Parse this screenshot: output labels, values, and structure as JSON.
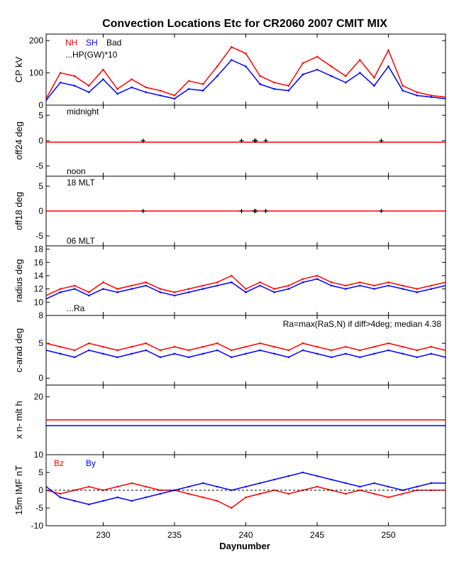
{
  "chart_data": {
    "type": "line",
    "title": "Convection Locations Etc for CR2060 2007 CMIT MIX",
    "xlabel": "Daynumber",
    "xlim": [
      226,
      254
    ],
    "x_ticks": [
      230,
      235,
      240,
      245,
      250
    ],
    "colors": {
      "nh": "#ff0000",
      "sh": "#0000ff",
      "bad": "#000000",
      "zero_line": "#ff0000"
    },
    "panels": [
      {
        "id": "cp",
        "ylabel": "CP kV",
        "ylim": [
          0,
          220
        ],
        "y_ticks": [
          0,
          100,
          200
        ],
        "legend": {
          "nh": "NH",
          "sh": "SH",
          "bad": "Bad"
        },
        "annotations": [
          "...HP(GW)*10"
        ],
        "series": [
          {
            "name": "NH",
            "x": [
              226,
              227,
              228,
              229,
              230,
              231,
              232,
              233,
              234,
              235,
              236,
              237,
              238,
              239,
              240,
              241,
              242,
              243,
              244,
              245,
              246,
              247,
              248,
              249,
              250,
              251,
              252,
              253,
              254
            ],
            "values": [
              20,
              100,
              90,
              60,
              110,
              50,
              80,
              55,
              45,
              30,
              75,
              65,
              120,
              180,
              160,
              90,
              70,
              60,
              130,
              150,
              120,
              90,
              140,
              85,
              170,
              60,
              40,
              30,
              25
            ]
          },
          {
            "name": "SH",
            "x": [
              226,
              227,
              228,
              229,
              230,
              231,
              232,
              233,
              234,
              235,
              236,
              237,
              238,
              239,
              240,
              241,
              242,
              243,
              244,
              245,
              246,
              247,
              248,
              249,
              250,
              251,
              252,
              253,
              254
            ],
            "values": [
              15,
              70,
              60,
              40,
              80,
              35,
              55,
              40,
              30,
              20,
              50,
              45,
              90,
              140,
              120,
              65,
              50,
              45,
              95,
              110,
              90,
              70,
              100,
              60,
              120,
              45,
              30,
              25,
              20
            ]
          }
        ]
      },
      {
        "id": "off24",
        "ylabel": "off24 deg",
        "ylim": [
          -7,
          7
        ],
        "y_ticks": [
          -5,
          0,
          5
        ],
        "annotations": [
          "midnight",
          "noon"
        ],
        "series": [
          {
            "name": "NH",
            "x": [
              226,
              254
            ],
            "values": [
              -0.3,
              -0.3
            ]
          }
        ],
        "markers": [
          {
            "x": 232.8,
            "y": 0
          },
          {
            "x": 239.7,
            "y": 0
          },
          {
            "x": 240.6,
            "y": 0
          },
          {
            "x": 240.7,
            "y": 0
          },
          {
            "x": 241.4,
            "y": 0
          },
          {
            "x": 249.5,
            "y": 0
          }
        ]
      },
      {
        "id": "off18",
        "ylabel": "off18 deg",
        "ylim": [
          -7,
          7
        ],
        "y_ticks": [
          -5,
          0,
          5
        ],
        "annotations": [
          "18 MLT",
          "06 MLT"
        ],
        "series": [
          {
            "name": "NH",
            "x": [
              226,
              254
            ],
            "values": [
              0,
              0
            ]
          }
        ],
        "markers": [
          {
            "x": 232.8,
            "y": 0
          },
          {
            "x": 239.7,
            "y": 0
          },
          {
            "x": 240.6,
            "y": 0
          },
          {
            "x": 240.7,
            "y": 0
          },
          {
            "x": 241.4,
            "y": 0
          },
          {
            "x": 249.5,
            "y": 0
          }
        ]
      },
      {
        "id": "radius",
        "ylabel": "radius deg",
        "ylim": [
          8,
          18.5
        ],
        "y_ticks": [
          8,
          10,
          12,
          14,
          16,
          18
        ],
        "annotations": [
          "...Ra"
        ],
        "series": [
          {
            "name": "NH",
            "x": [
              226,
              227,
              228,
              229,
              230,
              231,
              232,
              233,
              234,
              235,
              236,
              237,
              238,
              239,
              240,
              241,
              242,
              243,
              244,
              245,
              246,
              247,
              248,
              249,
              250,
              251,
              252,
              253,
              254
            ],
            "values": [
              11,
              12,
              12.5,
              11.5,
              13,
              12,
              12.5,
              13,
              12,
              11.5,
              12,
              12.5,
              13,
              14,
              12,
              13,
              12,
              12.5,
              13.5,
              14,
              13,
              12.5,
              13,
              12.5,
              13,
              12.5,
              12,
              12.5,
              13
            ]
          },
          {
            "name": "SH",
            "x": [
              226,
              227,
              228,
              229,
              230,
              231,
              232,
              233,
              234,
              235,
              236,
              237,
              238,
              239,
              240,
              241,
              242,
              243,
              244,
              245,
              246,
              247,
              248,
              249,
              250,
              251,
              252,
              253,
              254
            ],
            "values": [
              10.5,
              11.5,
              12,
              11,
              12,
              11.5,
              12,
              12.5,
              11.5,
              11,
              11.5,
              12,
              12.5,
              13,
              11.5,
              12.5,
              11.5,
              12,
              13,
              13.5,
              12.5,
              12,
              12.5,
              12,
              12.5,
              12,
              11.5,
              12,
              12.5
            ]
          }
        ]
      },
      {
        "id": "carad",
        "ylabel": "c-arad deg",
        "ylim": [
          -1,
          9
        ],
        "y_ticks": [
          0,
          5
        ],
        "annotations": [
          "Ra=max(RaS,N) if diff>4deg; median 4.38"
        ],
        "series": [
          {
            "name": "NH",
            "x": [
              226,
              227,
              228,
              229,
              230,
              231,
              232,
              233,
              234,
              235,
              236,
              237,
              238,
              239,
              240,
              241,
              242,
              243,
              244,
              245,
              246,
              247,
              248,
              249,
              250,
              251,
              252,
              253,
              254
            ],
            "values": [
              5,
              4.5,
              4,
              5,
              4.5,
              4,
              4.5,
              5,
              4,
              4.5,
              4,
              4.5,
              5,
              4,
              4.5,
              5,
              4.5,
              4,
              5,
              4.5,
              4,
              4.5,
              4,
              4.5,
              5,
              4.5,
              4,
              4.5,
              4
            ]
          },
          {
            "name": "SH",
            "x": [
              226,
              227,
              228,
              229,
              230,
              231,
              232,
              233,
              234,
              235,
              236,
              237,
              238,
              239,
              240,
              241,
              242,
              243,
              244,
              245,
              246,
              247,
              248,
              249,
              250,
              251,
              252,
              253,
              254
            ],
            "values": [
              4,
              3.5,
              3,
              4,
              3.5,
              3,
              3.5,
              4,
              3,
              3.5,
              3,
              3.5,
              4,
              3,
              3.5,
              4,
              3.5,
              3,
              4,
              3.5,
              3,
              3.5,
              3,
              3.5,
              4,
              3.5,
              3,
              3.5,
              3
            ]
          }
        ]
      },
      {
        "id": "mlt",
        "ylabel": "x n- mlt h",
        "ylim": [
          10,
          22
        ],
        "y_ticks": [
          10,
          20
        ],
        "annotations": [],
        "series": [
          {
            "name": "NH",
            "x": [
              226,
              254
            ],
            "values": [
              16,
              16
            ]
          },
          {
            "name": "SH",
            "x": [
              226,
              254
            ],
            "values": [
              15,
              15
            ]
          }
        ]
      },
      {
        "id": "imf",
        "ylabel": "15m IMF nT",
        "ylim": [
          -10,
          10
        ],
        "y_ticks": [
          -10,
          -5,
          0,
          5
        ],
        "annotations": [],
        "legend": {
          "bz": "Bz",
          "by": "By"
        },
        "series": [
          {
            "name": "Bz",
            "x": [
              226,
              227,
              228,
              229,
              230,
              231,
              232,
              233,
              234,
              235,
              236,
              237,
              238,
              239,
              240,
              241,
              242,
              243,
              244,
              245,
              246,
              247,
              248,
              249,
              250,
              251,
              252,
              253,
              254
            ],
            "values": [
              0,
              -1,
              0,
              1,
              0,
              1,
              2,
              1,
              0,
              0,
              -1,
              -2,
              -3,
              -5,
              -2,
              -1,
              0,
              -1,
              0,
              1,
              0,
              -1,
              0,
              -1,
              -2,
              -1,
              0,
              0,
              0
            ]
          },
          {
            "name": "By",
            "x": [
              226,
              227,
              228,
              229,
              230,
              231,
              232,
              233,
              234,
              235,
              236,
              237,
              238,
              239,
              240,
              241,
              242,
              243,
              244,
              245,
              246,
              247,
              248,
              249,
              250,
              251,
              252,
              253,
              254
            ],
            "values": [
              1,
              -2,
              -3,
              -4,
              -3,
              -2,
              -3,
              -2,
              -1,
              0,
              1,
              2,
              1,
              0,
              1,
              2,
              3,
              4,
              5,
              4,
              3,
              2,
              1,
              2,
              1,
              0,
              1,
              2,
              2
            ]
          }
        ]
      }
    ]
  }
}
